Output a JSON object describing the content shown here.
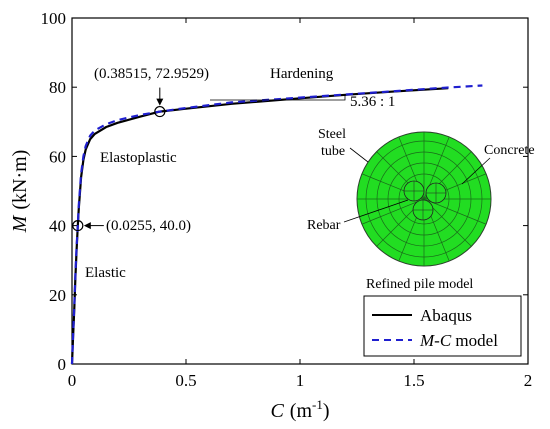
{
  "chart_data": {
    "type": "line",
    "title": "",
    "xlabel_var": "C",
    "xlabel_unit": "(m",
    "xlabel_exp": "-1",
    "xlabel_close": ")",
    "ylabel_var": "M",
    "ylabel_unit": "(kN·m)",
    "xlim": [
      0,
      2
    ],
    "ylim": [
      0,
      100
    ],
    "xticks": [
      0,
      0.5,
      1,
      1.5,
      2
    ],
    "xtick_labels": [
      "0",
      "0.5",
      "1",
      "1.5",
      "2"
    ],
    "yticks": [
      0,
      20,
      40,
      60,
      80,
      100
    ],
    "ytick_labels": [
      "0",
      "20",
      "40",
      "60",
      "80",
      "100"
    ],
    "grid": false,
    "legend_position": "bottom-right",
    "series": [
      {
        "name": "Abaqus",
        "color": "#000000",
        "style": "solid",
        "x": [
          0,
          0.005,
          0.01,
          0.015,
          0.02,
          0.0255,
          0.03,
          0.04,
          0.05,
          0.06,
          0.08,
          0.1,
          0.15,
          0.2,
          0.3,
          0.38515,
          0.5,
          0.7,
          1.0,
          1.2,
          1.4,
          1.65
        ],
        "y": [
          0,
          8,
          16,
          25,
          33,
          40.0,
          45,
          54,
          59,
          62,
          65,
          66.5,
          68.5,
          69.7,
          71.5,
          72.9529,
          73.8,
          75.2,
          76.8,
          77.8,
          78.7,
          79.7
        ]
      },
      {
        "name": "M-C model",
        "name_italic": "M-C",
        "name_suffix": " model",
        "color": "#1f1fcf",
        "style": "dashed",
        "x": [
          0,
          0.005,
          0.01,
          0.015,
          0.02,
          0.0255,
          0.03,
          0.04,
          0.05,
          0.06,
          0.08,
          0.1,
          0.15,
          0.2,
          0.3,
          0.38515,
          0.5,
          0.7,
          1.0,
          1.2,
          1.4,
          1.6,
          1.8
        ],
        "y": [
          0,
          8.5,
          17,
          26,
          34,
          40.0,
          46,
          55,
          60,
          63,
          66,
          67.5,
          69.3,
          70.5,
          72.0,
          72.9529,
          74.0,
          75.6,
          77.0,
          77.9,
          78.8,
          79.7,
          80.5
        ]
      }
    ],
    "annotations": {
      "point1": {
        "label": "(0.0255, 40.0)",
        "x": 0.0255,
        "y": 40.0
      },
      "point2": {
        "label": "(0.38515, 72.9529)",
        "x": 0.38515,
        "y": 72.9529
      },
      "elastic": "Elastic",
      "elastoplastic": "Elastoplastic",
      "hardening": "Hardening",
      "slope": "5.36 : 1"
    },
    "inset": {
      "title": "Refined pile model",
      "steel_tube": [
        "Steel",
        "tube"
      ],
      "concrete": "Concrete",
      "rebar": "Rebar",
      "fill_color": "#22dd22"
    }
  }
}
